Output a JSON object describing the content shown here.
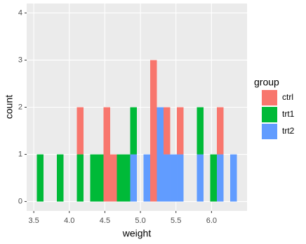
{
  "chart_data": {
    "type": "histogram",
    "x_label": "weight",
    "y_label": "count",
    "legend_title": "group",
    "legend_position": "right",
    "grid": true,
    "bins": [
      3.5431,
      3.6369,
      3.7307,
      3.8245,
      3.9183,
      4.0121,
      4.1059,
      4.1997,
      4.2935,
      4.3872,
      4.481,
      4.5748,
      4.6686,
      4.7624,
      4.8562,
      4.95,
      5.0438,
      5.1376,
      5.2314,
      5.3252,
      5.419,
      5.5128,
      5.6066,
      5.7004,
      5.7941,
      5.8879,
      5.9817,
      6.0755,
      6.1693,
      6.2631,
      6.3569
    ],
    "series": [
      {
        "name": "ctrl",
        "color": "#F8766D",
        "values": [
          0,
          0,
          0,
          0,
          0,
          0,
          1,
          0,
          0,
          0,
          2,
          1,
          0,
          0,
          0,
          0,
          0,
          3,
          0,
          1,
          0,
          1,
          0,
          0,
          0,
          0,
          0,
          1,
          0,
          0
        ]
      },
      {
        "name": "trt1",
        "color": "#00BA38",
        "values": [
          1,
          0,
          0,
          1,
          0,
          0,
          1,
          0,
          1,
          1,
          0,
          0,
          1,
          1,
          1,
          0,
          0,
          0,
          0,
          0,
          0,
          0,
          0,
          0,
          1,
          0,
          1,
          0,
          0,
          0
        ]
      },
      {
        "name": "trt2",
        "color": "#619CFF",
        "values": [
          0,
          0,
          0,
          0,
          0,
          0,
          0,
          0,
          0,
          0,
          0,
          0,
          0,
          0,
          1,
          0,
          1,
          0,
          2,
          1,
          1,
          1,
          0,
          0,
          1,
          0,
          0,
          1,
          0,
          1
        ]
      }
    ],
    "xlim": [
      3.4,
      6.5
    ],
    "xticks": [
      3.5,
      {
        "value": 4,
        "label": "4.0"
      },
      4.5,
      {
        "value": 5,
        "label": "5.0"
      },
      5.5,
      {
        "value": 6,
        "label": "6.0"
      }
    ],
    "ylim": [
      -0.2,
      4.2
    ],
    "yticks": [
      0,
      1,
      2,
      3,
      4
    ]
  }
}
